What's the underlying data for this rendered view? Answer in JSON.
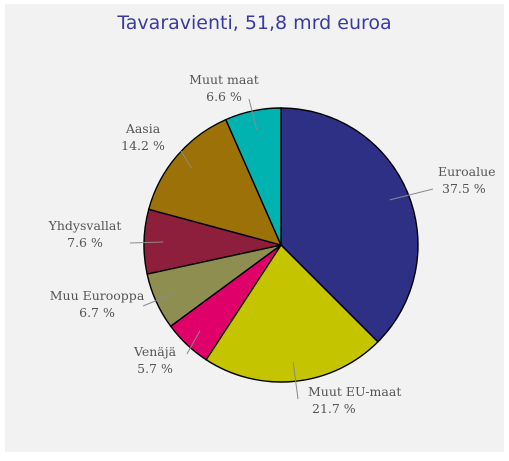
{
  "chart_data": {
    "type": "pie",
    "title": "Tavaravienti, 51,8 mrd euroa",
    "slices": [
      {
        "label": "Euroalue",
        "value": 37.5,
        "value_text": "37.5 %",
        "color": "#2e3085"
      },
      {
        "label": "Muut EU-maat",
        "value": 21.7,
        "value_text": "21.7 %",
        "color": "#c4c400"
      },
      {
        "label": "Venäjä",
        "value": 5.7,
        "value_text": "5.7 %",
        "color": "#e0006a"
      },
      {
        "label": "Muu Eurooppa",
        "value": 6.7,
        "value_text": "6.7 %",
        "color": "#8e8e50"
      },
      {
        "label": "Yhdysvallat",
        "value": 7.6,
        "value_text": "7.6 %",
        "color": "#8e1f3c"
      },
      {
        "label": "Aasia",
        "value": 14.2,
        "value_text": "14.2 %",
        "color": "#9c7208"
      },
      {
        "label": "Muut maat",
        "value": 6.6,
        "value_text": "6.6 %",
        "color": "#00b3b0"
      }
    ],
    "start_angle_deg": 0,
    "direction": "clockwise",
    "legend": "none"
  }
}
